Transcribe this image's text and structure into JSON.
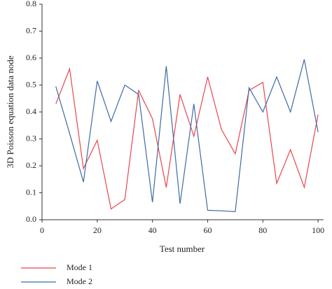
{
  "chart_data": {
    "type": "line",
    "x_label": "Test number",
    "y_label": "3D Poisson equation data node",
    "x": [
      5,
      10,
      15,
      20,
      25,
      30,
      35,
      40,
      45,
      50,
      55,
      60,
      65,
      70,
      75,
      80,
      85,
      90,
      95,
      100
    ],
    "series": [
      {
        "name": "Mode 1",
        "color": "#e8474b",
        "values": [
          0.43,
          0.56,
          0.19,
          0.295,
          0.04,
          0.075,
          0.48,
          0.375,
          0.12,
          0.465,
          0.31,
          0.53,
          0.335,
          0.245,
          0.48,
          0.51,
          0.135,
          0.26,
          0.12,
          0.39
        ]
      },
      {
        "name": "Mode 2",
        "color": "#3e6aa6",
        "values": [
          0.495,
          0.32,
          0.14,
          0.515,
          0.365,
          0.5,
          0.465,
          0.065,
          0.57,
          0.06,
          0.43,
          0.035,
          0.033,
          0.03,
          0.49,
          0.4,
          0.53,
          0.4,
          0.595,
          0.325
        ]
      }
    ],
    "xlim": [
      0,
      102
    ],
    "xticks": [
      0,
      20,
      40,
      60,
      80,
      100
    ],
    "ylim": [
      0,
      0.8
    ],
    "yticks": [
      {
        "value": 0,
        "label": "0.0"
      },
      0.1,
      0.2,
      0.3,
      0.4,
      0.5,
      0.6,
      0.7,
      0.8
    ],
    "legend": "bottom-left"
  }
}
